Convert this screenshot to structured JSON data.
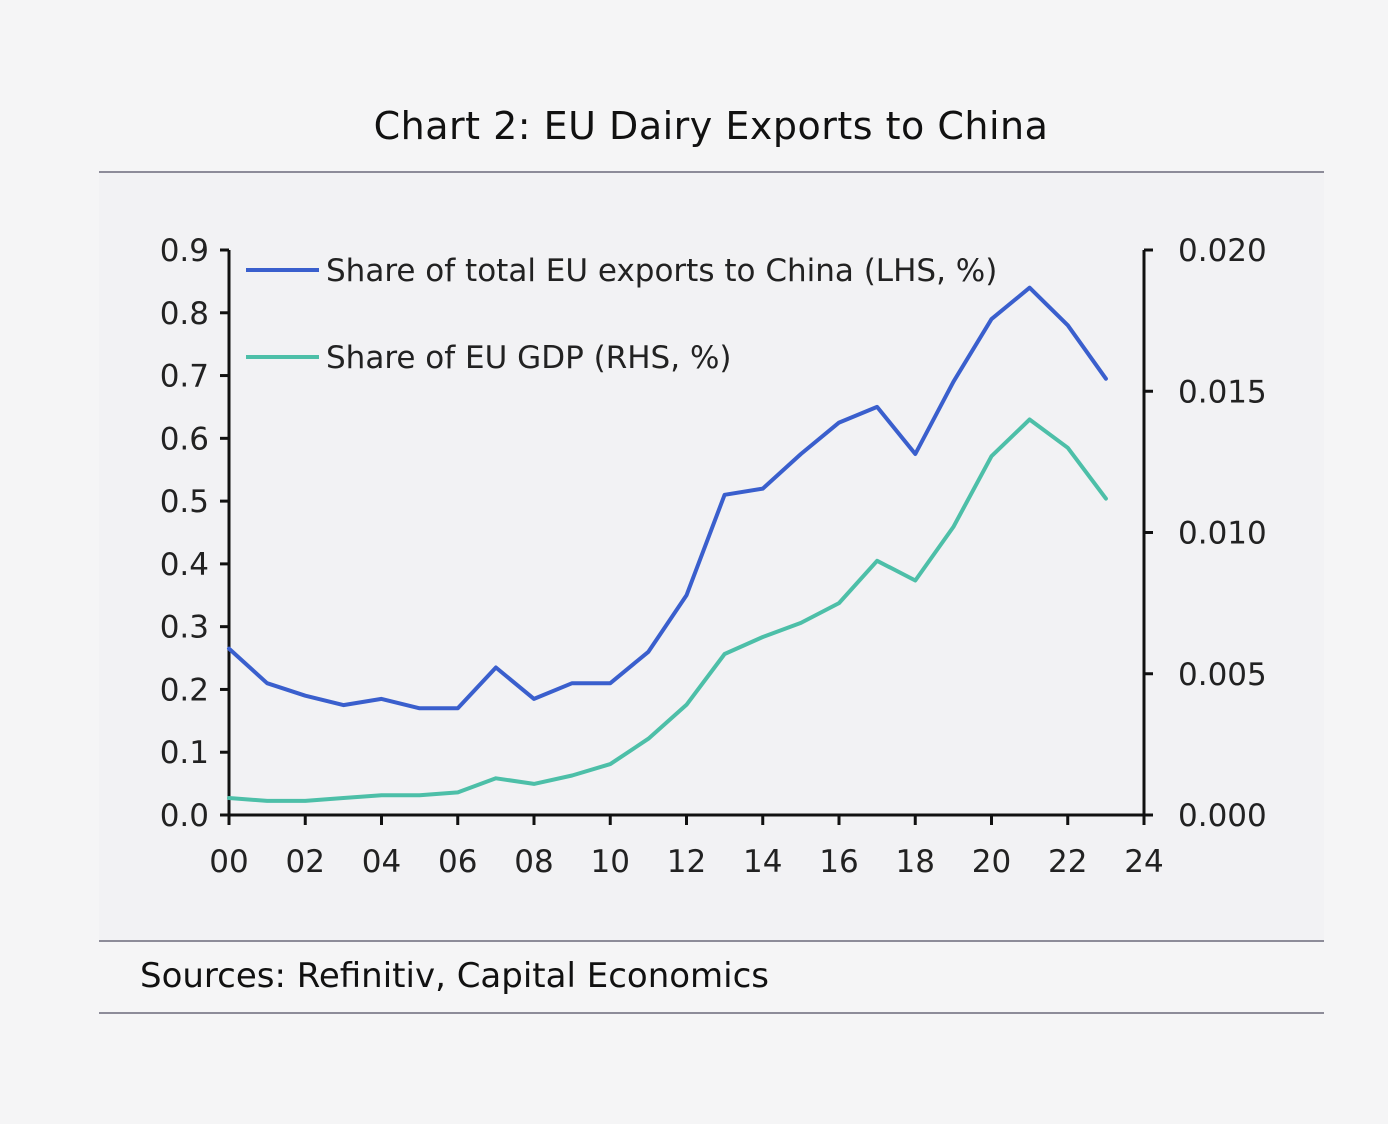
{
  "title": "Chart 2: EU Dairy Exports to China",
  "sources": "Sources: Refinitiv, Capital Economics",
  "chart_data": {
    "type": "line",
    "title": "Chart 2: EU Dairy Exports to China",
    "x_ticks": [
      "00",
      "02",
      "04",
      "06",
      "08",
      "10",
      "12",
      "14",
      "16",
      "18",
      "20",
      "22",
      "24"
    ],
    "x_range": [
      2000,
      2024
    ],
    "y_left": {
      "range": [
        0.0,
        0.9
      ],
      "ticks": [
        "0.0",
        "0.1",
        "0.2",
        "0.3",
        "0.4",
        "0.5",
        "0.6",
        "0.7",
        "0.8",
        "0.9"
      ]
    },
    "y_right": {
      "range": [
        0.0,
        0.02
      ],
      "ticks": [
        "0.000",
        "0.005",
        "0.010",
        "0.015",
        "0.020"
      ]
    },
    "grid": false,
    "legend_position": "top-left",
    "series": [
      {
        "name": "Share of total EU exports to China (LHS, %)",
        "axis": "left",
        "color": "#3a5fcd",
        "x": [
          2000,
          2001,
          2002,
          2003,
          2004,
          2005,
          2006,
          2007,
          2008,
          2009,
          2010,
          2011,
          2012,
          2013,
          2014,
          2015,
          2016,
          2017,
          2018,
          2019,
          2020,
          2021,
          2022,
          2023
        ],
        "values": [
          0.265,
          0.21,
          0.19,
          0.175,
          0.185,
          0.17,
          0.17,
          0.235,
          0.185,
          0.21,
          0.21,
          0.26,
          0.35,
          0.51,
          0.52,
          0.575,
          0.625,
          0.65,
          0.575,
          0.69,
          0.79,
          0.84,
          0.78,
          0.695
        ]
      },
      {
        "name": "Share of EU GDP (RHS, %)",
        "axis": "right",
        "color": "#4dbfa8",
        "x": [
          2000,
          2001,
          2002,
          2003,
          2004,
          2005,
          2006,
          2007,
          2008,
          2009,
          2010,
          2011,
          2012,
          2013,
          2014,
          2015,
          2016,
          2017,
          2018,
          2019,
          2020,
          2021,
          2022,
          2023
        ],
        "values": [
          0.0006,
          0.0005,
          0.0005,
          0.0006,
          0.0007,
          0.0007,
          0.0008,
          0.0013,
          0.0011,
          0.0014,
          0.0018,
          0.0027,
          0.0039,
          0.0057,
          0.0063,
          0.0068,
          0.0075,
          0.009,
          0.0083,
          0.0102,
          0.0127,
          0.014,
          0.013,
          0.0112
        ]
      }
    ]
  }
}
